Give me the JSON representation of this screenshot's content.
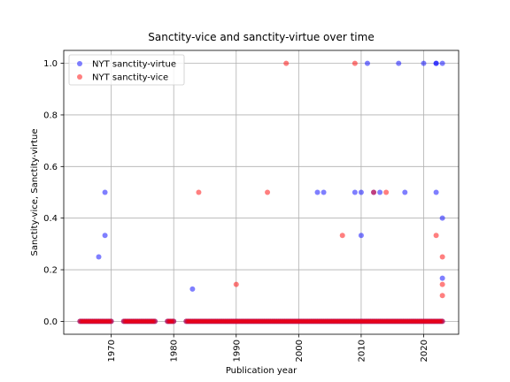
{
  "chart_data": {
    "type": "scatter",
    "title": "Sanctity-vice and sanctity-virtue over time",
    "xlabel": "Publication year",
    "ylabel": "Sanctity-vice, Sanctity-virtue",
    "xlim": [
      1962.4,
      2025.6
    ],
    "ylim": [
      -0.05,
      1.05
    ],
    "xticks": [
      1970,
      1980,
      1990,
      2000,
      2010,
      2020
    ],
    "xtick_labels": [
      "1970",
      "1980",
      "1990",
      "2000",
      "2010",
      "2020"
    ],
    "yticks": [
      0.0,
      0.2,
      0.4,
      0.6,
      0.8,
      1.0
    ],
    "ytick_labels": [
      "0.0",
      "0.2",
      "0.4",
      "0.6",
      "0.8",
      "1.0"
    ],
    "grid": true,
    "legend_position": "upper-left",
    "zero_range_years": [
      [
        1965,
        1970
      ],
      [
        1972,
        1977
      ],
      [
        1979,
        1980
      ],
      [
        1982,
        2023
      ]
    ],
    "series": [
      {
        "name": "NYT sanctity-virtue",
        "color": "#0000ff",
        "alpha": 0.5,
        "points": [
          [
            1968,
            0.25
          ],
          [
            1969,
            0.333
          ],
          [
            1969,
            0.5
          ],
          [
            1983,
            0.125
          ],
          [
            2003,
            0.5
          ],
          [
            2004,
            0.5
          ],
          [
            2009,
            0.5
          ],
          [
            2010,
            0.5
          ],
          [
            2010,
            0.333
          ],
          [
            2011,
            1.0
          ],
          [
            2012,
            0.5
          ],
          [
            2013,
            0.5
          ],
          [
            2016,
            1.0
          ],
          [
            2017,
            0.5
          ],
          [
            2020,
            1.0
          ],
          [
            2022,
            1.0
          ],
          [
            2022,
            1.0
          ],
          [
            2022,
            0.5
          ],
          [
            2023,
            1.0
          ],
          [
            2023,
            0.4
          ],
          [
            2023,
            0.167
          ]
        ]
      },
      {
        "name": "NYT sanctity-vice",
        "color": "#ff0000",
        "alpha": 0.5,
        "points": [
          [
            1984,
            0.5
          ],
          [
            1990,
            0.143
          ],
          [
            1995,
            0.5
          ],
          [
            1998,
            1.0
          ],
          [
            2007,
            0.333
          ],
          [
            2009,
            1.0
          ],
          [
            2012,
            0.5
          ],
          [
            2014,
            0.5
          ],
          [
            2022,
            0.333
          ],
          [
            2023,
            0.25
          ],
          [
            2023,
            0.143
          ],
          [
            2023,
            0.1
          ]
        ]
      }
    ]
  }
}
